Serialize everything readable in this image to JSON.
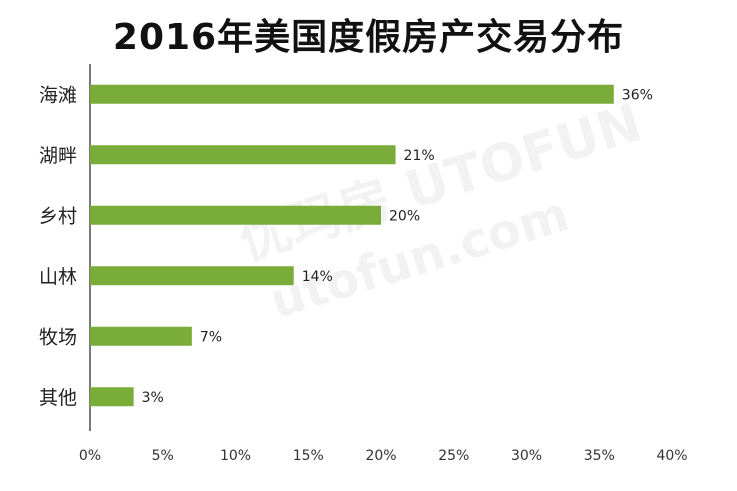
{
  "title": "2016年美国度假房产交易分布",
  "watermark": {
    "line1": "优玛房 UTOFUN",
    "line2": "utofun.com"
  },
  "chart_data": {
    "type": "bar",
    "orientation": "horizontal",
    "title": "2016年美国度假房产交易分布",
    "categories": [
      "海滩",
      "湖畔",
      "乡村",
      "山林",
      "牧场",
      "其他"
    ],
    "values": [
      36,
      21,
      20,
      14,
      7,
      3
    ],
    "value_labels": [
      "36%",
      "21%",
      "20%",
      "14%",
      "7%",
      "3%"
    ],
    "xlim": [
      0,
      40
    ],
    "xticks": [
      "0%",
      "5%",
      "10%",
      "15%",
      "20%",
      "25%",
      "30%",
      "35%",
      "40%"
    ],
    "grid": false,
    "bar_color": "#7aac3a"
  }
}
